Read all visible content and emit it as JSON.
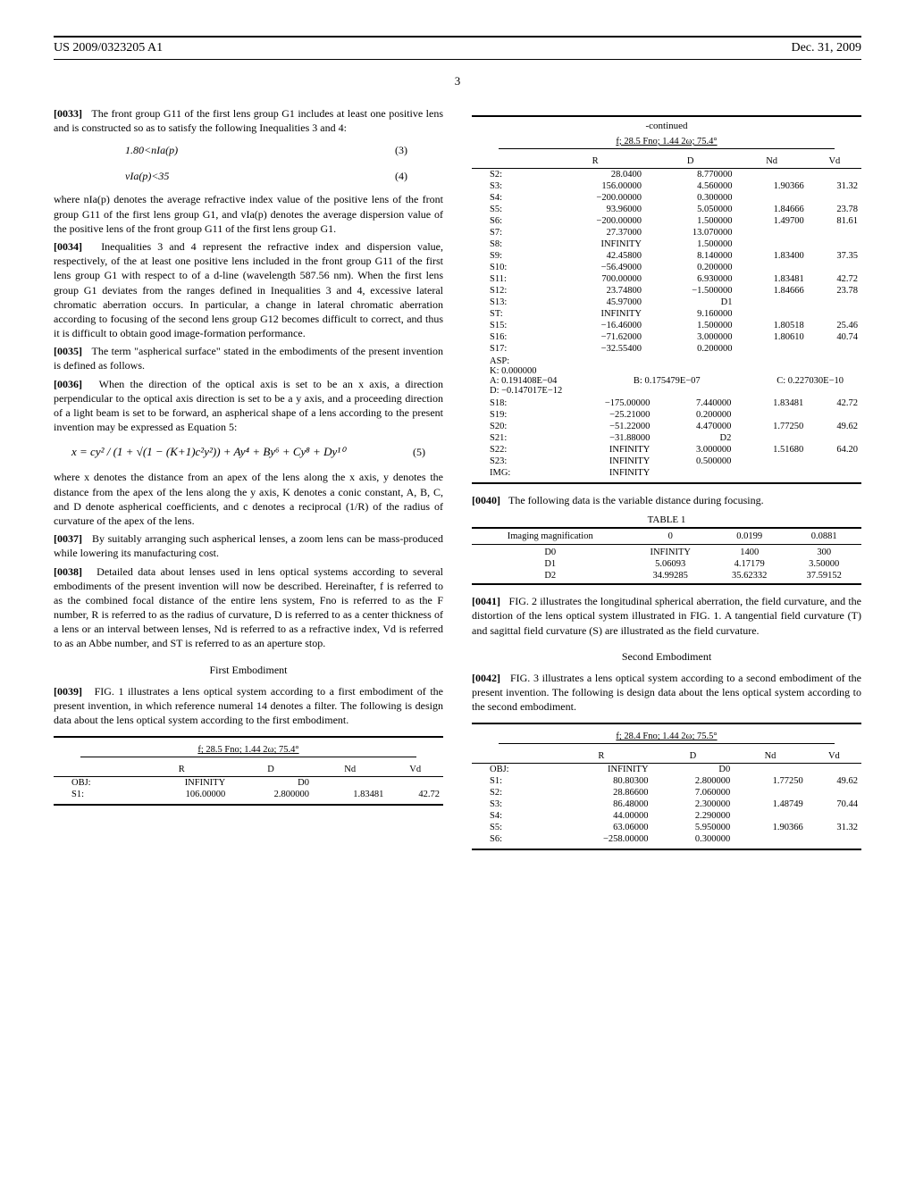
{
  "header": {
    "left": "US 2009/0323205 A1",
    "right": "Dec. 31, 2009"
  },
  "page_number": "3",
  "col1": {
    "p0033": {
      "num": "[0033]",
      "text": "The front group G11 of the first lens group G1 includes at least one positive lens and is constructed so as to satisfy the following Inequalities 3 and 4:"
    },
    "eq3": {
      "formula": "1.80<nIa(p)",
      "num": "(3)"
    },
    "eq4": {
      "formula": "vIa(p)<35",
      "num": "(4)"
    },
    "p_where": {
      "text": "where nIa(p) denotes the average refractive index value of the positive lens of the front group G11 of the first lens group G1, and vIa(p) denotes the average dispersion value of the positive lens of the front group G11 of the first lens group G1."
    },
    "p0034": {
      "num": "[0034]",
      "text": "Inequalities 3 and 4 represent the refractive index and dispersion value, respectively, of the at least one positive lens included in the front group G11 of the first lens group G1 with respect to of a d-line (wavelength 587.56 nm). When the first lens group G1 deviates from the ranges defined in Inequalities 3 and 4, excessive lateral chromatic aberration occurs. In particular, a change in lateral chromatic aberration according to focusing of the second lens group G12 becomes difficult to correct, and thus it is difficult to obtain good image-formation performance."
    },
    "p0035": {
      "num": "[0035]",
      "text": "The term \"aspherical surface\" stated in the embodiments of the present invention is defined as follows."
    },
    "p0036": {
      "num": "[0036]",
      "text": "When the direction of the optical axis is set to be an x axis, a direction perpendicular to the optical axis direction is set to be a y axis, and a proceeding direction of a light beam is set to be forward, an aspherical shape of a lens according to the present invention may be expressed as Equation 5:"
    },
    "eq5": {
      "formula": "x = cy² / (1 + √(1 − (K+1)c²y²)) + Ay⁴ + By⁶ + Cy⁸ + Dy¹⁰",
      "num": "(5)"
    },
    "p_eq5": {
      "text": "where x denotes the distance from an apex of the lens along the x axis, y denotes the distance from the apex of the lens along the y axis, K denotes a conic constant, A, B, C, and D denote aspherical coefficients, and c denotes a reciprocal (1/R) of the radius of curvature of the apex of the lens."
    },
    "p0037": {
      "num": "[0037]",
      "text": "By suitably arranging such aspherical lenses, a zoom lens can be mass-produced while lowering its manufacturing cost."
    },
    "p0038": {
      "num": "[0038]",
      "text": "Detailed data about lenses used in lens optical systems according to several embodiments of the present invention will now be described. Hereinafter, f is referred to as the combined focal distance of the entire lens system, Fno is referred to as the F number, R is referred to as the radius of curvature, D is referred to as a center thickness of a lens or an interval between lenses, Nd is referred to as a refractive index, Vd is referred to as an Abbe number, and ST is referred to as an aperture stop."
    },
    "first_emb_title": "First Embodiment",
    "p0039": {
      "num": "[0039]",
      "text": "FIG. 1 illustrates a lens optical system according to a first embodiment of the present invention, in which reference numeral 14 denotes a filter. The following is design data about the lens optical system according to the first embodiment."
    },
    "table1_head": {
      "title": "f; 28.5 Fno; 1.44 2ω; 75.4°",
      "cols": [
        "",
        "R",
        "D",
        "Nd",
        "Vd"
      ]
    },
    "table1_rows": [
      [
        "OBJ:",
        "INFINITY",
        "D0",
        "",
        ""
      ],
      [
        "S1:",
        "106.00000",
        "2.800000",
        "1.83481",
        "42.72"
      ]
    ]
  },
  "col2": {
    "cont_label": "-continued",
    "tableA_head": {
      "title": "f; 28.5 Fno; 1.44 2ω; 75.4°",
      "cols": [
        "",
        "R",
        "D",
        "Nd",
        "Vd"
      ]
    },
    "tableA_rows": [
      [
        "S2:",
        "28.0400",
        "8.770000",
        "",
        ""
      ],
      [
        "S3:",
        "156.00000",
        "4.560000",
        "1.90366",
        "31.32"
      ],
      [
        "S4:",
        "−200.00000",
        "0.300000",
        "",
        ""
      ],
      [
        "S5:",
        "93.96000",
        "5.050000",
        "1.84666",
        "23.78"
      ],
      [
        "S6:",
        "−200.00000",
        "1.500000",
        "1.49700",
        "81.61"
      ],
      [
        "S7:",
        "27.37000",
        "13.070000",
        "",
        ""
      ],
      [
        "S8:",
        "INFINITY",
        "1.500000",
        "",
        ""
      ],
      [
        "S9:",
        "42.45800",
        "8.140000",
        "1.83400",
        "37.35"
      ],
      [
        "S10:",
        "−56.49000",
        "0.200000",
        "",
        ""
      ],
      [
        "S11:",
        "700.00000",
        "6.930000",
        "1.83481",
        "42.72"
      ],
      [
        "S12:",
        "23.74800",
        "−1.500000",
        "1.84666",
        "23.78"
      ],
      [
        "S13:",
        "45.97000",
        "D1",
        "",
        ""
      ],
      [
        "ST:",
        "INFINITY",
        "9.160000",
        "",
        ""
      ],
      [
        "S15:",
        "−16.46000",
        "1.500000",
        "1.80518",
        "25.46"
      ],
      [
        "S16:",
        "−71.62000",
        "3.000000",
        "1.80610",
        "40.74"
      ],
      [
        "S17:",
        "−32.55400",
        "0.200000",
        "",
        ""
      ]
    ],
    "asp": {
      "label": "ASP:",
      "K": "K: 0.000000",
      "A": "A: 0.191408E−04",
      "B": "B: 0.175479E−07",
      "C": "C: 0.227030E−10",
      "D": "D: −0.147017E−12"
    },
    "tableA_rows2": [
      [
        "S18:",
        "−175.00000",
        "7.440000",
        "1.83481",
        "42.72"
      ],
      [
        "S19:",
        "−25.21000",
        "0.200000",
        "",
        ""
      ],
      [
        "S20:",
        "−51.22000",
        "4.470000",
        "1.77250",
        "49.62"
      ],
      [
        "S21:",
        "−31.88000",
        "D2",
        "",
        ""
      ],
      [
        "S22:",
        "INFINITY",
        "3.000000",
        "1.51680",
        "64.20"
      ],
      [
        "S23:",
        "INFINITY",
        "0.500000",
        "",
        ""
      ],
      [
        "IMG:",
        "INFINITY",
        "",
        "",
        ""
      ]
    ],
    "p0040": {
      "num": "[0040]",
      "text": "The following data is the variable distance during focusing."
    },
    "table1_title": "TABLE 1",
    "tbl1_head": [
      "Imaging magnification",
      "0",
      "0.0199",
      "0.0881"
    ],
    "tbl1_rows": [
      [
        "D0",
        "INFINITY",
        "1400",
        "300"
      ],
      [
        "D1",
        "5.06093",
        "4.17179",
        "3.50000"
      ],
      [
        "D2",
        "34.99285",
        "35.62332",
        "37.59152"
      ]
    ],
    "p0041": {
      "num": "[0041]",
      "text": "FIG. 2 illustrates the longitudinal spherical aberration, the field curvature, and the distortion of the lens optical system illustrated in FIG. 1. A tangential field curvature (T) and sagittal field curvature (S) are illustrated as the field curvature."
    },
    "second_emb_title": "Second Embodiment",
    "p0042": {
      "num": "[0042]",
      "text": "FIG. 3 illustrates a lens optical system according to a second embodiment of the present invention. The following is design data about the lens optical system according to the second embodiment."
    },
    "tableB_head": {
      "title": "f; 28.4 Fno; 1.44 2ω; 75.5°",
      "cols": [
        "",
        "R",
        "D",
        "Nd",
        "Vd"
      ]
    },
    "tableB_rows": [
      [
        "OBJ:",
        "INFINITY",
        "D0",
        "",
        ""
      ],
      [
        "S1:",
        "80.80300",
        "2.800000",
        "1.77250",
        "49.62"
      ],
      [
        "S2:",
        "28.86600",
        "7.060000",
        "",
        ""
      ],
      [
        "S3:",
        "86.48000",
        "2.300000",
        "1.48749",
        "70.44"
      ],
      [
        "S4:",
        "44.00000",
        "2.290000",
        "",
        ""
      ],
      [
        "S5:",
        "63.06000",
        "5.950000",
        "1.90366",
        "31.32"
      ],
      [
        "S6:",
        "−258.00000",
        "0.300000",
        "",
        ""
      ]
    ]
  }
}
